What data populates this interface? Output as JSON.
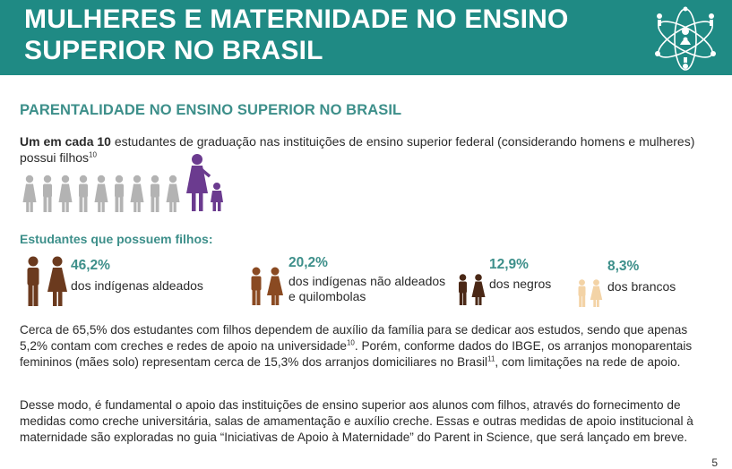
{
  "header": {
    "title": "MULHERES E MATERNIDADE NO ENSINO SUPERIOR NO BRASIL",
    "logo_icon": "parent-in-science-logo"
  },
  "section_title": "PARENTALIDADE NO ENSINO SUPERIOR NO BRASIL",
  "intro": {
    "bold": "Um em cada 10",
    "text": " estudantes de graduação nas instituições de ensino superior federal (considerando homens e mulheres) possui filhos",
    "sup": "10"
  },
  "people_graphic": {
    "total": 10,
    "highlighted": 1,
    "gray": "#b0b0b0",
    "purple": "#6b3b8f"
  },
  "subtitle": "Estudantes que possuem filhos:",
  "stats": [
    {
      "pct": "46,2%",
      "label": "dos indígenas aldeados",
      "color": "#6b3a1e"
    },
    {
      "pct": "20,2%",
      "label": "dos indígenas não aldeados e quilombolas",
      "color": "#8a4a22"
    },
    {
      "pct": "12,9%",
      "label": "dos negros",
      "color": "#4a2816"
    },
    {
      "pct": "8,3%",
      "label": "dos brancos",
      "color": "#f3d3a6"
    }
  ],
  "paragraphs": {
    "p1_a": "Cerca de 65,5% dos estudantes com filhos dependem de auxílio da família para se dedicar aos estudos, sendo que apenas 5,2% contam com creches e redes de apoio na universidade",
    "p1_sup1": "10",
    "p1_b": ". Porém, conforme dados do IBGE, os arranjos monoparentais femininos (mães solo) representam cerca de 15,3% dos arranjos domiciliares no Brasil",
    "p1_sup2": "11",
    "p1_c": ", com limitações na rede de apoio.",
    "p2": "Desse modo, é fundamental o apoio das instituições de ensino superior aos alunos com filhos, através do fornecimento de medidas como creche universitária, salas de amamentação e auxílio creche. Essas e outras medidas de apoio institucional à maternidade são exploradas no guia “Iniciativas de Apoio à Maternidade” do Parent in Science, que será lançado em breve."
  },
  "page_number": "5"
}
